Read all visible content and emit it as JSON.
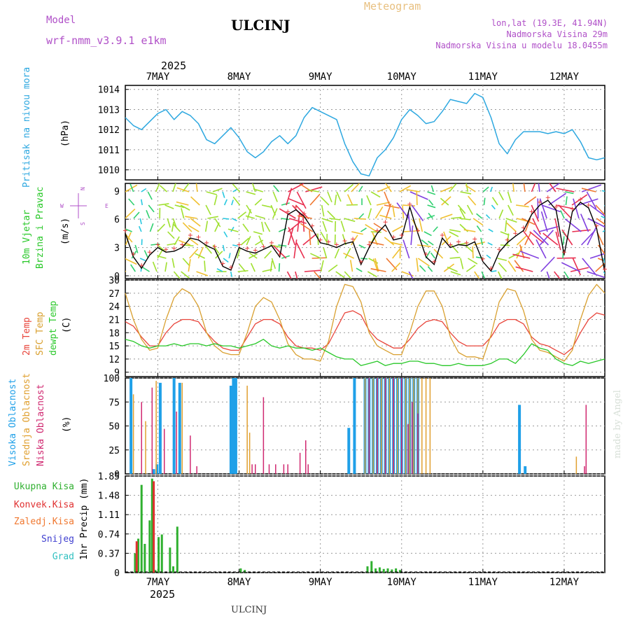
{
  "header": {
    "model_label": "Model",
    "model_name": "wrf-nmm_v3.9.1  e1km",
    "title": "ULCINJ",
    "meteogram_label": "Meteogram",
    "coords": "lon,lat (19.3E, 41.94N)",
    "elevation": "Nadmorska Visina 29m",
    "model_elevation": "Nadmorska Visina u modelu 18.0455m"
  },
  "footer": {
    "station": "ULCINJ",
    "credit": "made by Angel"
  },
  "time_axis": {
    "year": "2025",
    "days": [
      "7MAY",
      "8MAY",
      "9MAY",
      "10MAY",
      "11MAY",
      "12MAY"
    ],
    "range_days": [
      6.6,
      12.5
    ]
  },
  "colors": {
    "pressure": "#2ea8e0",
    "temp2m": "#e8443a",
    "sfc": "#d9a030",
    "dewpt": "#28c828",
    "high_cloud": "#1fa0e8",
    "mid_cloud": "#e0a030",
    "low_cloud": "#d02870",
    "total_precip": "#30b030",
    "convective": "#e03030",
    "frozen": "#f07830",
    "snow": "#4040d0",
    "hail": "#30c0c0",
    "label_purple": "#b050c8"
  },
  "chart_data": [
    {
      "type": "line",
      "panel": "pressure",
      "ylabel_main": "Pritisak na nivou mora",
      "ylabel_unit": "(hPa)",
      "ylim": [
        1009.5,
        1014.2
      ],
      "yticks": [
        "1010",
        "1011",
        "1012",
        "1013",
        "1014"
      ],
      "series": [
        {
          "x": [
            6.6,
            6.7,
            6.8,
            6.9,
            7.0,
            7.1,
            7.2,
            7.3,
            7.4,
            7.5,
            7.6,
            7.7,
            7.8,
            7.9,
            8.0,
            8.1,
            8.2,
            8.3,
            8.4,
            8.5,
            8.6,
            8.7,
            8.8,
            8.9,
            9.0,
            9.1,
            9.2,
            9.3,
            9.4,
            9.5,
            9.6,
            9.7,
            9.8,
            9.9,
            10.0,
            10.1,
            10.2,
            10.3,
            10.4,
            10.5,
            10.6,
            10.7,
            10.8,
            10.9,
            11.0,
            11.1,
            11.2,
            11.3,
            11.4,
            11.5,
            11.6,
            11.7,
            11.8,
            11.9,
            12.0,
            12.1,
            12.2,
            12.3,
            12.4,
            12.5
          ],
          "values": [
            1012.6,
            1012.2,
            1012.0,
            1012.4,
            1012.8,
            1013.0,
            1012.5,
            1012.9,
            1012.7,
            1012.3,
            1011.5,
            1011.3,
            1011.7,
            1012.1,
            1011.6,
            1010.9,
            1010.6,
            1010.9,
            1011.4,
            1011.7,
            1011.3,
            1011.7,
            1012.6,
            1013.1,
            1012.9,
            1012.7,
            1012.5,
            1011.3,
            1010.4,
            1009.8,
            1009.7,
            1010.6,
            1011.0,
            1011.6,
            1012.5,
            1013.0,
            1012.7,
            1012.3,
            1012.4,
            1012.9,
            1013.5,
            1013.4,
            1013.3,
            1013.8,
            1013.6,
            1012.6,
            1011.3,
            1010.8,
            1011.5,
            1011.9,
            1011.9,
            1011.9,
            1011.8,
            1011.9,
            1011.8,
            1012.0,
            1011.4,
            1010.6,
            1010.5,
            1010.6
          ]
        }
      ]
    },
    {
      "type": "line",
      "panel": "wind",
      "ylabel_main": "10m Vjetar",
      "ylabel_sub": "Brzina i Pravac",
      "ylabel_unit": "(m/s)",
      "compass": [
        "N",
        "W",
        "E",
        "S"
      ],
      "ylim": [
        -0.3,
        9.8
      ],
      "yticks": [
        "0",
        "3",
        "6",
        "9"
      ],
      "series": [
        {
          "x": [
            6.6,
            6.7,
            6.8,
            6.9,
            7.0,
            7.1,
            7.2,
            7.3,
            7.4,
            7.5,
            7.6,
            7.7,
            7.8,
            7.9,
            8.0,
            8.1,
            8.2,
            8.3,
            8.4,
            8.5,
            8.6,
            8.7,
            8.8,
            8.9,
            9.0,
            9.1,
            9.2,
            9.3,
            9.4,
            9.5,
            9.6,
            9.7,
            9.8,
            9.9,
            10.0,
            10.1,
            10.2,
            10.3,
            10.4,
            10.5,
            10.6,
            10.7,
            10.8,
            10.9,
            11.0,
            11.1,
            11.2,
            11.3,
            11.4,
            11.5,
            11.6,
            11.7,
            11.8,
            11.9,
            12.0,
            12.1,
            12.2,
            12.3,
            12.4,
            12.5
          ],
          "values": [
            4.5,
            2.0,
            0.8,
            2.2,
            3.0,
            2.5,
            2.6,
            3.0,
            4.0,
            3.8,
            3.2,
            2.8,
            1.0,
            0.6,
            3.0,
            2.6,
            2.4,
            2.8,
            3.2,
            2.0,
            6.5,
            7.0,
            6.3,
            5.0,
            3.5,
            3.3,
            3.0,
            3.4,
            3.6,
            1.2,
            3.0,
            4.5,
            5.4,
            3.8,
            4.0,
            7.3,
            4.5,
            2.0,
            1.2,
            4.0,
            3.0,
            3.3,
            3.2,
            3.6,
            1.5,
            0.5,
            2.5,
            3.5,
            4.2,
            4.8,
            6.5,
            7.5,
            8.0,
            7.0,
            2.2,
            6.8,
            7.8,
            7.2,
            5.0,
            0.4
          ]
        }
      ]
    },
    {
      "type": "line",
      "panel": "temperature",
      "ylabel_2m": "2m Temp",
      "ylabel_sfc": "SFC Temp",
      "ylabel_dew": "dewpt Temp",
      "ylabel_unit": "(C)",
      "ylim": [
        8,
        30
      ],
      "yticks": [
        "9",
        "12",
        "15",
        "18",
        "21",
        "24",
        "27",
        "30"
      ],
      "x": [
        6.6,
        6.7,
        6.8,
        6.9,
        7.0,
        7.1,
        7.2,
        7.3,
        7.4,
        7.5,
        7.6,
        7.7,
        7.8,
        7.9,
        8.0,
        8.1,
        8.2,
        8.3,
        8.4,
        8.5,
        8.6,
        8.7,
        8.8,
        8.9,
        9.0,
        9.1,
        9.2,
        9.3,
        9.4,
        9.5,
        9.6,
        9.7,
        9.8,
        9.9,
        10.0,
        10.1,
        10.2,
        10.3,
        10.4,
        10.5,
        10.6,
        10.7,
        10.8,
        10.9,
        11.0,
        11.1,
        11.2,
        11.3,
        11.4,
        11.5,
        11.6,
        11.7,
        11.8,
        11.9,
        12.0,
        12.1,
        12.2,
        12.3,
        12.4,
        12.5
      ],
      "series": [
        {
          "name": "2m Temp",
          "values": [
            20.5,
            19.5,
            17.0,
            15.0,
            15.0,
            18.0,
            20.0,
            21.0,
            21.0,
            20.5,
            18.0,
            16.0,
            14.5,
            14.0,
            14.0,
            17.0,
            20.0,
            21.0,
            21.0,
            20.0,
            17.0,
            15.0,
            14.5,
            14.5,
            14.0,
            15.5,
            19.0,
            22.5,
            23.0,
            22.0,
            18.5,
            16.5,
            15.5,
            14.5,
            14.5,
            16.5,
            19.0,
            20.5,
            21.0,
            20.5,
            18.0,
            16.0,
            15.0,
            15.0,
            15.0,
            17.0,
            20.0,
            21.0,
            21.0,
            20.0,
            17.0,
            15.5,
            15.0,
            14.0,
            13.0,
            14.5,
            18.0,
            21.0,
            22.5,
            22.0
          ]
        },
        {
          "name": "SFC Temp",
          "values": [
            27.0,
            21.0,
            16.5,
            14.0,
            14.5,
            21.0,
            26.0,
            28.0,
            27.0,
            24.0,
            18.0,
            15.0,
            13.5,
            13.0,
            13.0,
            18.0,
            24.0,
            26.0,
            25.0,
            21.0,
            15.5,
            13.0,
            12.0,
            12.0,
            11.5,
            16.0,
            24.0,
            29.0,
            28.5,
            25.0,
            18.0,
            15.0,
            14.0,
            13.0,
            13.0,
            18.0,
            24.0,
            27.5,
            27.5,
            24.0,
            17.0,
            13.5,
            12.5,
            12.5,
            12.0,
            17.5,
            25.0,
            28.0,
            27.5,
            23.0,
            16.5,
            14.0,
            13.5,
            12.5,
            11.5,
            14.0,
            21.0,
            26.5,
            29.0,
            27.0
          ]
        },
        {
          "name": "dewpt Temp",
          "values": [
            16.5,
            16.0,
            15.0,
            14.5,
            15.0,
            15.0,
            15.5,
            15.0,
            15.5,
            15.5,
            15.0,
            15.5,
            15.0,
            15.0,
            14.5,
            15.0,
            15.5,
            16.5,
            15.0,
            14.5,
            15.0,
            14.5,
            14.5,
            14.0,
            14.5,
            13.5,
            12.5,
            12.0,
            12.0,
            10.5,
            11.0,
            11.5,
            10.5,
            11.0,
            11.0,
            11.5,
            11.5,
            11.0,
            11.0,
            10.5,
            10.5,
            11.0,
            10.5,
            10.5,
            10.5,
            11.0,
            12.0,
            12.0,
            11.0,
            13.0,
            15.5,
            14.5,
            14.0,
            12.0,
            11.0,
            10.5,
            11.5,
            11.0,
            11.5,
            12.0
          ]
        }
      ]
    },
    {
      "type": "bar",
      "panel": "clouds",
      "ylabel_high": "Visoka Oblacnost",
      "ylabel_mid": "Srednja Oblacnost",
      "ylabel_low": "Niska Oblacnost",
      "ylabel_unit": "(%)",
      "ylim": [
        0,
        100
      ],
      "yticks": [
        "0",
        "25",
        "50",
        "75",
        "100"
      ],
      "series": [
        {
          "name": "Visoka Oblacnost",
          "x": [
            6.67,
            6.95,
            6.99,
            7.03,
            7.2,
            7.27,
            7.9,
            7.93,
            7.96,
            9.35,
            9.42,
            9.55,
            9.6,
            9.65,
            9.7,
            9.75,
            9.8,
            9.85,
            9.9,
            9.95,
            10.0,
            10.05,
            10.1,
            10.15,
            10.2,
            11.45,
            11.52
          ],
          "values": [
            100,
            5,
            10,
            95,
            100,
            95,
            92,
            100,
            100,
            48,
            100,
            100,
            100,
            100,
            100,
            100,
            100,
            100,
            100,
            100,
            100,
            100,
            100,
            100,
            100,
            72,
            8
          ]
        },
        {
          "name": "Srednja Oblacnost",
          "x": [
            6.7,
            6.85,
            6.98,
            7.3,
            8.1,
            8.13,
            9.55,
            9.6,
            9.65,
            9.7,
            9.75,
            9.8,
            9.85,
            9.9,
            9.95,
            10.0,
            10.05,
            10.1,
            10.15,
            10.2,
            10.25,
            10.3,
            10.35,
            12.15
          ],
          "values": [
            83,
            55,
            97,
            95,
            92,
            43,
            100,
            100,
            100,
            100,
            100,
            100,
            100,
            100,
            100,
            100,
            100,
            100,
            100,
            100,
            100,
            100,
            100,
            18
          ]
        },
        {
          "name": "Niska Oblacnost",
          "x": [
            6.8,
            6.93,
            7.08,
            7.23,
            7.4,
            7.48,
            8.16,
            8.2,
            8.3,
            8.37,
            8.45,
            8.55,
            8.6,
            8.75,
            8.82,
            8.85,
            9.6,
            9.7,
            9.8,
            9.9,
            10.0,
            10.08,
            10.13,
            10.2,
            12.25,
            12.27
          ],
          "values": [
            75,
            90,
            47,
            65,
            40,
            8,
            10,
            10,
            80,
            10,
            10,
            10,
            10,
            22,
            35,
            10,
            100,
            100,
            100,
            100,
            100,
            52,
            75,
            63,
            8,
            72
          ]
        }
      ]
    },
    {
      "type": "bar",
      "panel": "precip",
      "ylabel_unit": "1hr Precip (mm)",
      "legend": [
        "Ukupna Kisa",
        "Konvek.Kisa",
        "Zaledj.Kisa",
        "Snijeg",
        "Grad"
      ],
      "ylim": [
        0,
        1.85
      ],
      "yticks": [
        "0",
        "0.37",
        "0.74",
        "1.11",
        "1.48",
        "1.85"
      ],
      "series": [
        {
          "name": "Ukupna Kisa",
          "x": [
            6.72,
            6.76,
            6.8,
            6.84,
            6.9,
            6.93,
            6.97,
            7.01,
            7.05,
            7.15,
            7.19,
            7.24,
            8.02,
            8.07,
            9.58,
            9.63,
            9.68,
            9.73,
            9.78,
            9.83,
            9.88,
            9.93,
            9.98
          ],
          "values": [
            0.37,
            0.65,
            1.68,
            0.55,
            1.0,
            1.8,
            0.05,
            0.68,
            0.73,
            0.48,
            0.12,
            0.88,
            0.08,
            0.05,
            0.12,
            0.22,
            0.08,
            0.1,
            0.07,
            0.08,
            0.06,
            0.08,
            0.05
          ]
        },
        {
          "name": "Konvek.Kisa",
          "x": [
            6.74,
            6.95
          ],
          "values": [
            0.6,
            1.75
          ]
        }
      ]
    }
  ]
}
